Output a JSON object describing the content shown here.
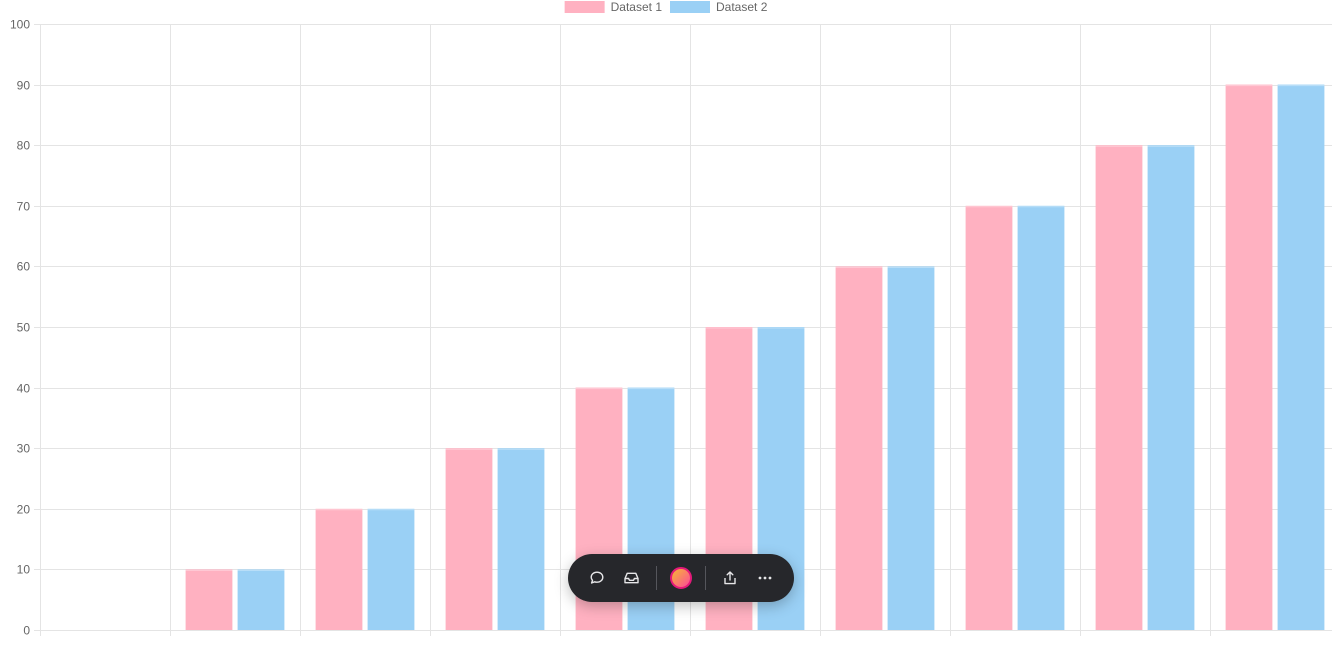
{
  "chart_data": {
    "type": "bar",
    "categories": [
      "",
      "",
      "",
      "",
      "",
      "",
      "",
      "",
      "",
      ""
    ],
    "series": [
      {
        "name": "Dataset 1",
        "color": "#ffb1c1",
        "values": [
          0,
          10,
          20,
          30,
          40,
          50,
          60,
          70,
          80,
          90
        ]
      },
      {
        "name": "Dataset 2",
        "color": "#9ad0f5",
        "values": [
          0,
          10,
          20,
          30,
          40,
          50,
          60,
          70,
          80,
          90
        ]
      }
    ],
    "title": "",
    "xlabel": "",
    "ylabel": "",
    "ylim": [
      0,
      100
    ],
    "yticks": [
      "0",
      "10",
      "20",
      "30",
      "40",
      "50",
      "60",
      "70",
      "80",
      "90",
      "100"
    ],
    "grid": true,
    "legend_position": "top-center"
  },
  "toolbar": {
    "buttons": [
      {
        "name": "comment-button",
        "icon": "speech-bubble-icon"
      },
      {
        "name": "inbox-button",
        "icon": "inbox-icon"
      },
      {
        "name": "avatar-button",
        "icon": "avatar-icon"
      },
      {
        "name": "share-button",
        "icon": "share-icon"
      },
      {
        "name": "more-button",
        "icon": "ellipsis-icon"
      }
    ],
    "background": "#26272b"
  }
}
